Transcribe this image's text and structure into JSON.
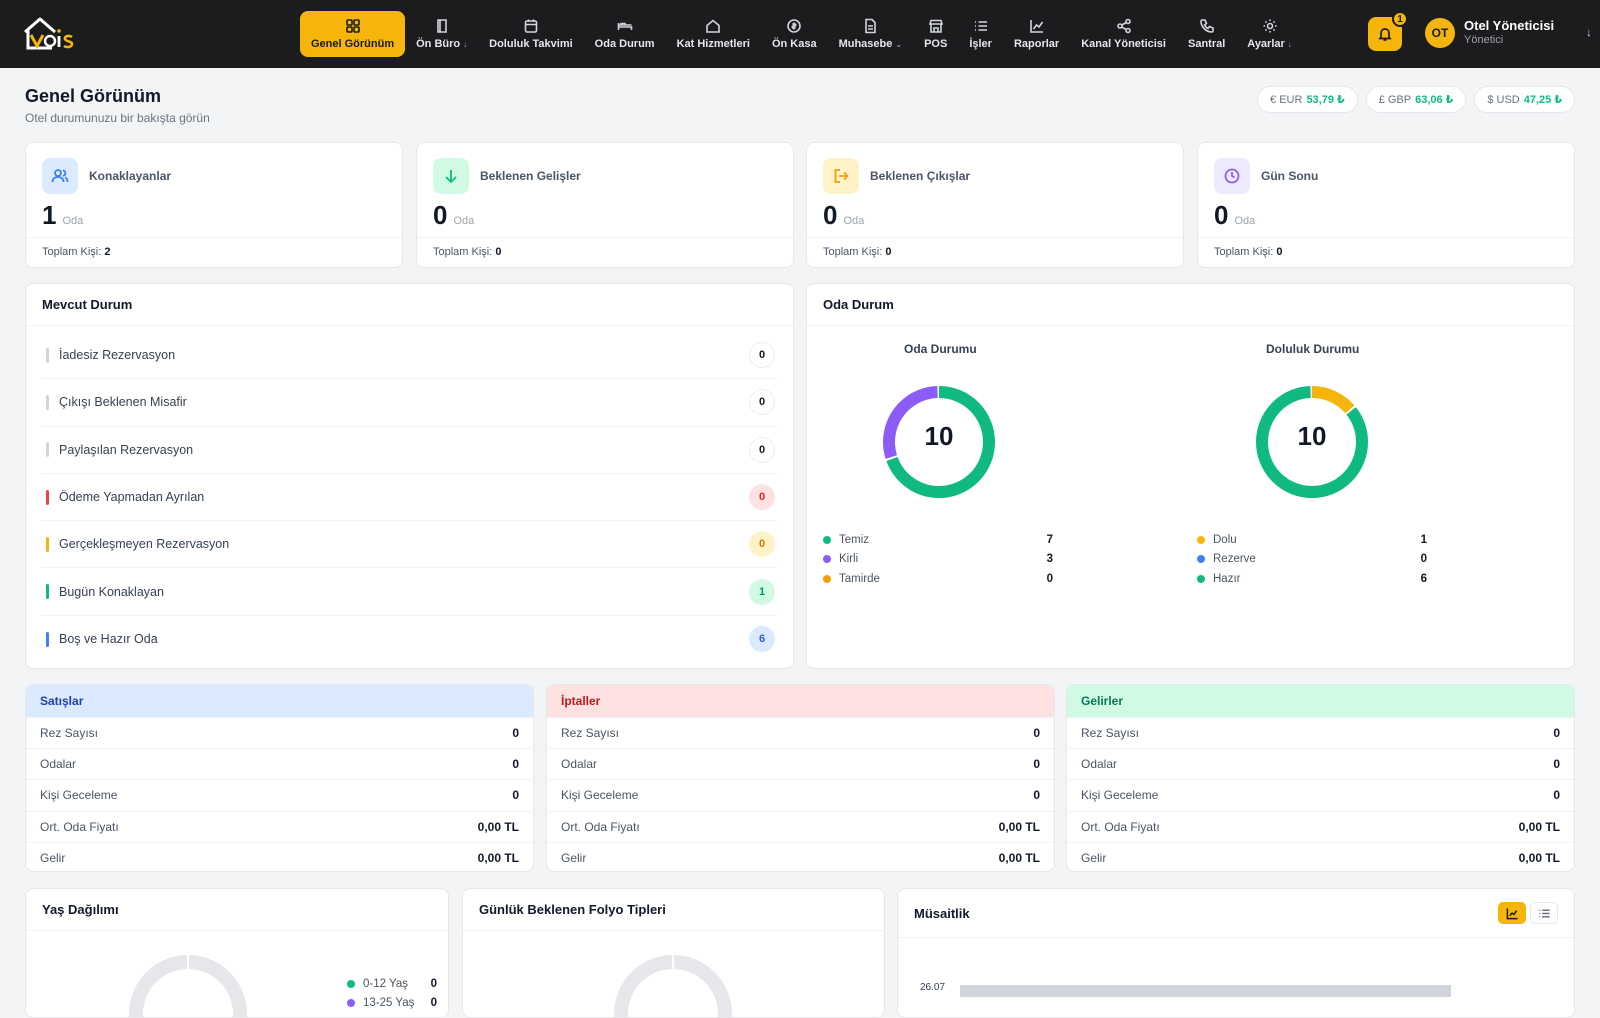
{
  "nav": {
    "items": [
      {
        "label": "Genel Görünüm",
        "icon": "grid-icon",
        "active": true
      },
      {
        "label": "Ön Büro",
        "icon": "book-icon",
        "dropdown": true
      },
      {
        "label": "Doluluk Takvimi",
        "icon": "calendar-icon"
      },
      {
        "label": "Oda Durum",
        "icon": "bed-icon"
      },
      {
        "label": "Kat Hizmetleri",
        "icon": "home-icon"
      },
      {
        "label": "Ön Kasa",
        "icon": "coin-icon"
      },
      {
        "label": "Muhasebe",
        "icon": "document-icon",
        "dropdown": true
      },
      {
        "label": "POS",
        "icon": "store-icon"
      },
      {
        "label": "İşler",
        "icon": "list-icon"
      },
      {
        "label": "Raporlar",
        "icon": "chart-icon"
      },
      {
        "label": "Kanal Yöneticisi",
        "icon": "share-icon"
      },
      {
        "label": "Santral",
        "icon": "phone-icon"
      },
      {
        "label": "Ayarlar",
        "icon": "sun-gear-icon",
        "dropdown": true
      }
    ]
  },
  "notifications": {
    "count": "1"
  },
  "user": {
    "initials": "OT",
    "name": "Otel Yöneticisi",
    "role": "Yönetici"
  },
  "header": {
    "title": "Genel Görünüm",
    "subtitle": "Otel durumunuzu bir bakışta görün"
  },
  "currencies": [
    {
      "label": "€ EUR",
      "value": "53,79 ₺"
    },
    {
      "label": "£ GBP",
      "value": "63,06 ₺"
    },
    {
      "label": "$ USD",
      "value": "47,25 ₺"
    }
  ],
  "stats": [
    {
      "label": "Konaklayanlar",
      "value": "1",
      "unit": "Oda",
      "foot_label": "Toplam Kişi:",
      "foot_value": "2",
      "color": "#3b82f6",
      "bg": "#dbeafe"
    },
    {
      "label": "Beklenen Gelişler",
      "value": "0",
      "unit": "Oda",
      "foot_label": "Toplam Kişi:",
      "foot_value": "0",
      "color": "#10b981",
      "bg": "#d1fae5"
    },
    {
      "label": "Beklenen Çıkışlar",
      "value": "0",
      "unit": "Oda",
      "foot_label": "Toplam Kişi:",
      "foot_value": "0",
      "color": "#f59e0b",
      "bg": "#fef3c7"
    },
    {
      "label": "Gün Sonu",
      "value": "0",
      "unit": "Oda",
      "foot_label": "Toplam Kişi:",
      "foot_value": "0",
      "color": "#8b5cf6",
      "bg": "#ede9fe"
    }
  ],
  "current": {
    "title": "Mevcut Durum",
    "rows": [
      {
        "label": "İadesiz Rezervasyon",
        "value": "0",
        "bar": "#d1d5db",
        "pill_bg": "#ffffff",
        "pill_fg": "#111827"
      },
      {
        "label": "Çıkışı Beklenen Misafir",
        "value": "0",
        "bar": "#d1d5db",
        "pill_bg": "#ffffff",
        "pill_fg": "#111827"
      },
      {
        "label": "Paylaşılan Rezervasyon",
        "value": "0",
        "bar": "#d1d5db",
        "pill_bg": "#ffffff",
        "pill_fg": "#111827"
      },
      {
        "label": "Ödeme Yapmadan Ayrılan",
        "value": "0",
        "bar": "#ef4444",
        "pill_bg": "#fee2e2",
        "pill_fg": "#dc2626"
      },
      {
        "label": "Gerçekleşmeyen Rezervasyon",
        "value": "0",
        "bar": "#f5b50a",
        "pill_bg": "#fef3c7",
        "pill_fg": "#d97706"
      },
      {
        "label": "Bugün Konaklayan",
        "value": "1",
        "bar": "#10b981",
        "pill_bg": "#d1fae5",
        "pill_fg": "#059669"
      },
      {
        "label": "Boş ve Hazır Oda",
        "value": "6",
        "bar": "#3b82f6",
        "pill_bg": "#dbeafe",
        "pill_fg": "#2563eb"
      }
    ]
  },
  "rooms": {
    "title": "Oda Durum",
    "charts": [
      {
        "title": "Oda Durumu",
        "total": "10",
        "items": [
          {
            "label": "Temiz",
            "value": 7,
            "color": "#10b981"
          },
          {
            "label": "Kirli",
            "value": 3,
            "color": "#8b5cf6"
          },
          {
            "label": "Tamirde",
            "value": 0,
            "color": "#f59e0b"
          }
        ]
      },
      {
        "title": "Doluluk Durumu",
        "total": "10",
        "items": [
          {
            "label": "Dolu",
            "value": 1,
            "color": "#f5b50a"
          },
          {
            "label": "Rezerve",
            "value": 0,
            "color": "#3b82f6"
          },
          {
            "label": "Hazır",
            "value": 6,
            "color": "#10b981"
          }
        ]
      }
    ]
  },
  "summaries": [
    {
      "title": "Satışlar",
      "head_bg": "#dbeafe",
      "head_fg": "#1e40af",
      "rows": [
        {
          "label": "Rez Sayısı",
          "value": "0"
        },
        {
          "label": "Odalar",
          "value": "0"
        },
        {
          "label": "Kişi Geceleme",
          "value": "0"
        },
        {
          "label": "Ort. Oda Fiyatı",
          "value": "0,00 TL"
        },
        {
          "label": "Gelir",
          "value": "0,00 TL"
        }
      ]
    },
    {
      "title": "İptaller",
      "head_bg": "#fee2e2",
      "head_fg": "#b91c1c",
      "rows": [
        {
          "label": "Rez Sayısı",
          "value": "0"
        },
        {
          "label": "Odalar",
          "value": "0"
        },
        {
          "label": "Kişi Geceleme",
          "value": "0"
        },
        {
          "label": "Ort. Oda Fiyatı",
          "value": "0,00 TL"
        },
        {
          "label": "Gelir",
          "value": "0,00 TL"
        }
      ]
    },
    {
      "title": "Gelirler",
      "head_bg": "#d1fae5",
      "head_fg": "#047857",
      "rows": [
        {
          "label": "Rez Sayısı",
          "value": "0"
        },
        {
          "label": "Odalar",
          "value": "0"
        },
        {
          "label": "Kişi Geceleme",
          "value": "0"
        },
        {
          "label": "Ort. Oda Fiyatı",
          "value": "0,00 TL"
        },
        {
          "label": "Gelir",
          "value": "0,00 TL"
        }
      ]
    }
  ],
  "age": {
    "title": "Yaş Dağılımı",
    "legend": [
      {
        "label": "0-12 Yaş",
        "value": "0",
        "color": "#10b981"
      },
      {
        "label": "13-25 Yaş",
        "value": "0",
        "color": "#8b5cf6"
      }
    ]
  },
  "folio": {
    "title": "Günlük Beklenen Folyo Tipleri"
  },
  "availability": {
    "title": "Müsaitlik",
    "first_date": "26.07"
  }
}
